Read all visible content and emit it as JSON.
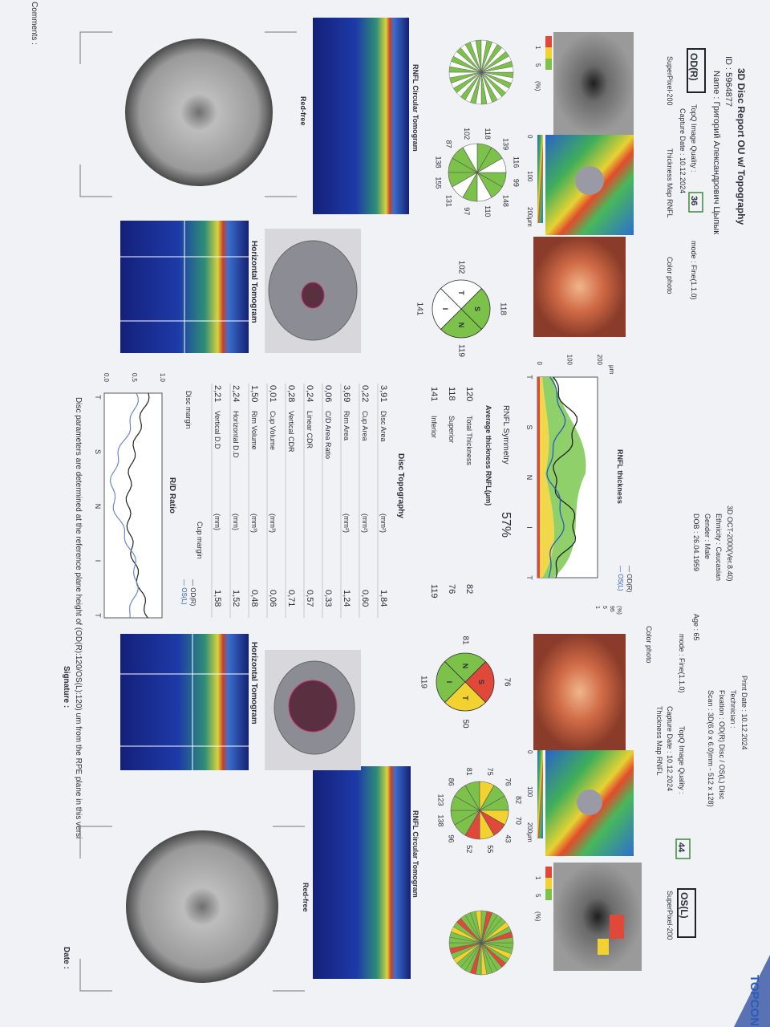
{
  "header": {
    "brand": "TOPCON",
    "title": "3D Disc Report OU w/ Topography",
    "id": "ID : 5964877",
    "name": "Name : Григорий Александрович Цыпык",
    "device": "3D OCT-2000(Ver.8.40)",
    "ethnicity": "Ethnicity : Caucasian",
    "gender": "Gender : Male",
    "dob": "DOB : 26.04.1959",
    "age": "Age : 65",
    "print_date": "Print Date : 10.12.2024",
    "technician": "Technician :",
    "fixation": "Fixation : OD(R) Disc / OS(L) Disc",
    "scan": "Scan : 3D(6.0 x 6.0)mm - 512 x 128)"
  },
  "od": {
    "eye": "OD(R)",
    "quality_label": "TopQ Image Quality :",
    "quality": "36",
    "mode": "mode : Fine(1.1.0)",
    "capture_date": "Capture Date : 10.12.2024",
    "superpixel": "SuperPixel-200",
    "thickness_map": "Thickness Map RNFL",
    "color_photo": "Color photo",
    "red_free": "Red-free",
    "rnfl_tomogram": "RNFL Circular Tomogram",
    "horizontal_tomogram": "Horizontal Tomogram",
    "percent_scale": [
      "1",
      "5",
      "(%)"
    ],
    "thickness_scale": [
      "0",
      "100",
      "200μm"
    ],
    "clock_hours": [
      "138",
      "155",
      "131",
      "97",
      "110",
      "148",
      "99",
      "116",
      "139",
      "118",
      "102",
      "87"
    ],
    "clock_colors": [
      "#7cc24a",
      "#7cc24a",
      "#ffffff",
      "#7cc24a",
      "#ffffff",
      "#7cc24a",
      "#7cc24a",
      "#ffffff",
      "#7cc24a",
      "#7cc24a",
      "#ffffff",
      "#7cc24a"
    ],
    "quadrants": [
      {
        "label": "S",
        "value": "118",
        "color": "#7cc24a"
      },
      {
        "label": "T",
        "value": "102",
        "color": "#ffffff"
      },
      {
        "label": "N",
        "value": "119",
        "color": "#7cc24a"
      },
      {
        "label": "I",
        "value": "141",
        "color": "#ffffff"
      }
    ]
  },
  "os": {
    "eye": "OS(L)",
    "quality_label": "TopQ Image Quality :",
    "quality": "44",
    "mode": "mode : Fine(1.1.0)",
    "capture_date": "Capture Date : 10.12.2024",
    "superpixel": "SuperPixel-200",
    "thickness_map": "Thickness Map RNFL",
    "color_photo": "Color photo",
    "red_free": "Red-free",
    "rnfl_tomogram": "RNFL Circular Tomogram",
    "horizontal_tomogram": "Horizontal Tomogram",
    "percent_scale": [
      "1",
      "5",
      "(%)"
    ],
    "thickness_scale": [
      "0",
      "100",
      "200μm"
    ],
    "clock_hours": [
      "76",
      "82",
      "70",
      "43",
      "55",
      "52",
      "96",
      "138",
      "123",
      "86",
      "81",
      "75"
    ],
    "clock_colors": [
      "#7cc24a",
      "#7cc24a",
      "#f2d230",
      "#e0483a",
      "#f2d230",
      "#e0483a",
      "#7cc24a",
      "#7cc24a",
      "#7cc24a",
      "#7cc24a",
      "#7cc24a",
      "#f2d230"
    ],
    "quadrants": [
      {
        "label": "S",
        "value": "76",
        "color": "#e0483a"
      },
      {
        "label": "T",
        "value": "50",
        "color": "#f2d230"
      },
      {
        "label": "N",
        "value": "81",
        "color": "#7cc24a"
      },
      {
        "label": "I",
        "value": "119",
        "color": "#7cc24a"
      }
    ]
  },
  "rnfl_chart": {
    "title": "RNFL thickness",
    "unit": "μm",
    "yticks": [
      "200",
      "100",
      "0"
    ],
    "xlabels": [
      "T",
      "S",
      "N",
      "I",
      "T"
    ],
    "legend": [
      "— OD(R)",
      "— OS(L)"
    ],
    "percent": [
      "(%)",
      "95",
      "5",
      "1"
    ]
  },
  "symmetry": {
    "label": "RNFL Symmetry",
    "value": "57%"
  },
  "average_thickness": {
    "title": "Average thickness RNFL(μm)",
    "rows": [
      {
        "od": "120",
        "label": "Total Thickness",
        "os": "82"
      },
      {
        "od": "118",
        "label": "Superior",
        "os": "76"
      },
      {
        "od": "141",
        "label": "Inferior",
        "os": "119"
      }
    ]
  },
  "disc_topography": {
    "title": "Disc Topography",
    "rows": [
      {
        "od": "3,91",
        "label": "Disc Area",
        "unit": "(mm²)",
        "os": "1,84"
      },
      {
        "od": "0,22",
        "label": "Cup Area",
        "unit": "(mm²)",
        "os": "0,60"
      },
      {
        "od": "3,69",
        "label": "Rim Area",
        "unit": "(mm²)",
        "os": "1,24"
      },
      {
        "od": "0,06",
        "label": "C/D Area Ratio",
        "os": "0,33"
      },
      {
        "od": "0,24",
        "label": "Linear CDR",
        "os": "0,57"
      },
      {
        "od": "0,28",
        "label": "Vertical CDR",
        "os": "0,71"
      },
      {
        "od": "0,01",
        "label": "Cup Volume",
        "unit": "(mm³)",
        "os": "0,06"
      },
      {
        "od": "1,50",
        "label": "Rim Volume",
        "unit": "(mm³)",
        "os": "0,48"
      },
      {
        "od": "2,24",
        "label": "Horizontal D.D",
        "unit": "(mm)",
        "os": "1,52"
      },
      {
        "od": "2,21",
        "label": "Vertical D.D",
        "unit": "(mm)",
        "os": "1,58"
      }
    ]
  },
  "rd_ratio": {
    "title": "R/D Ratio",
    "disc_margin": "Disc margin",
    "cup_margin": "Cup margin",
    "legend": [
      "— OD(R)",
      "— OS(L)"
    ],
    "yticks": [
      "1.0",
      "0.5",
      "0.0"
    ],
    "xlabels": [
      "T",
      "S",
      "N",
      "I",
      "T"
    ]
  },
  "footer": {
    "note": "Disc parameters are determined at the reference plane height of (OD(R):120/OS(L):120) um from the RPE plane in this versi",
    "signature": "Signature :",
    "date": "Date :",
    "comments": "Comments :"
  }
}
